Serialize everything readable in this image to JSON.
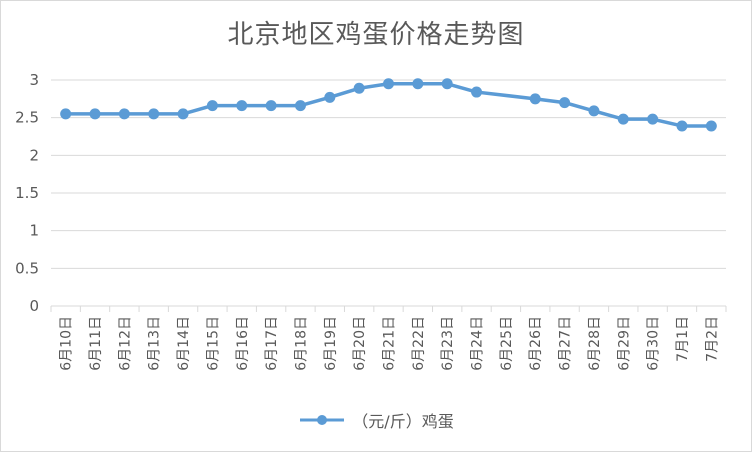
{
  "colors": {
    "series": "#5b9bd5",
    "grid": "#d9d9d9",
    "text": "#595959"
  },
  "chart_data": {
    "type": "line",
    "title": "北京地区鸡蛋价格走势图",
    "xlabel": "",
    "ylabel": "",
    "ylim": [
      0,
      3
    ],
    "yticks": [
      "0",
      "0.5",
      "1",
      "1.5",
      "2",
      "2.5",
      "3"
    ],
    "grid": true,
    "legend_position": "bottom",
    "categories": [
      "6月10日",
      "6月11日",
      "6月12日",
      "6月13日",
      "6月14日",
      "6月15日",
      "6月16日",
      "6月17日",
      "6月18日",
      "6月19日",
      "6月20日",
      "6月21日",
      "6月22日",
      "6月23日",
      "6月24日",
      "6月25日",
      "6月26日",
      "6月27日",
      "6月28日",
      "6月29日",
      "6月30日",
      "7月1日",
      "7月2日"
    ],
    "series": [
      {
        "name": "（元/斤）鸡蛋",
        "values": [
          2.55,
          2.55,
          2.55,
          2.55,
          2.55,
          2.66,
          2.66,
          2.66,
          2.66,
          2.77,
          2.89,
          2.95,
          2.95,
          2.95,
          2.84,
          null,
          2.75,
          2.7,
          2.59,
          2.48,
          2.48,
          2.39,
          2.39
        ]
      }
    ]
  }
}
